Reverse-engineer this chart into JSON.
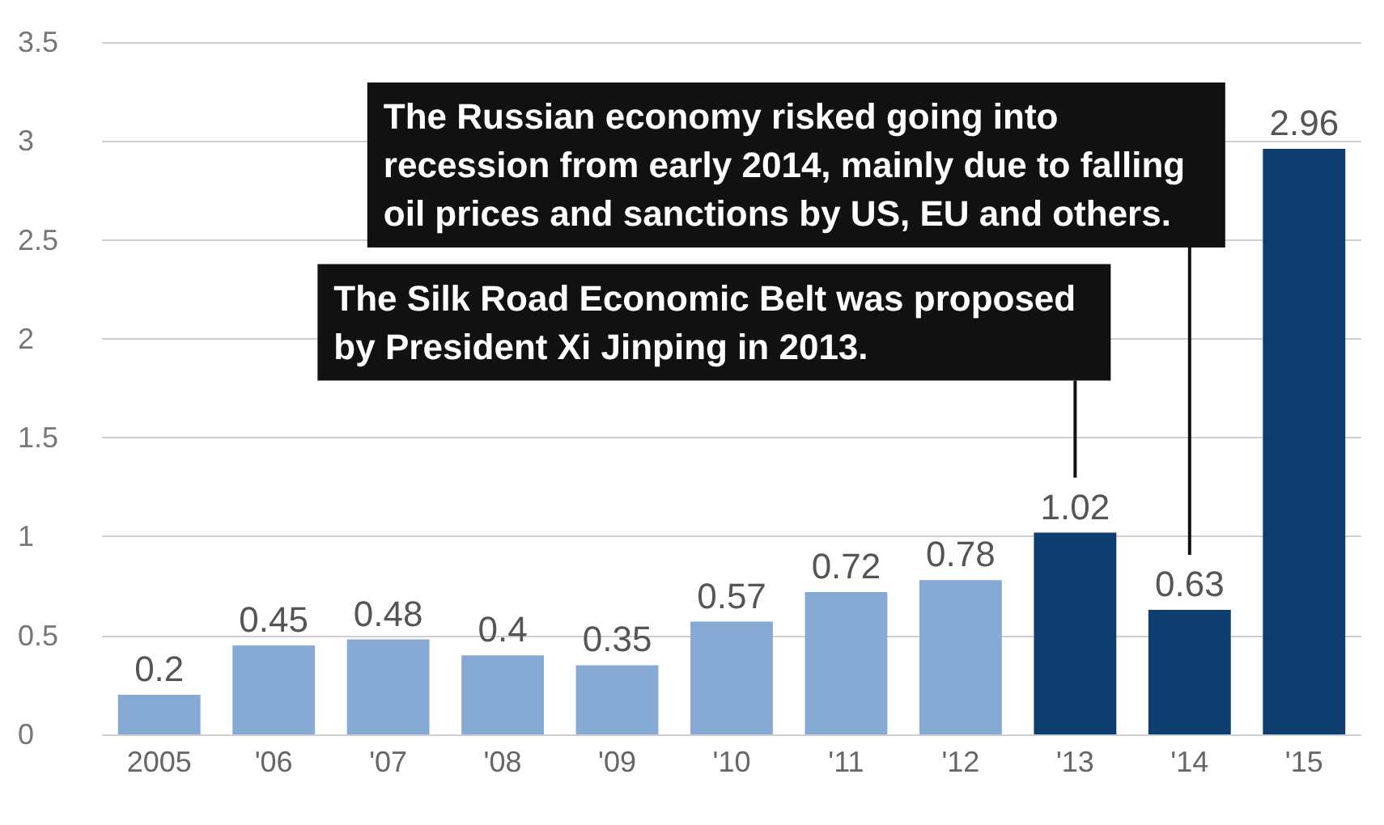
{
  "chart_data": {
    "type": "bar",
    "categories": [
      "2005",
      "'06",
      "'07",
      "'08",
      "'09",
      "'10",
      "'11",
      "'12",
      "'13",
      "'14",
      "'15"
    ],
    "values": [
      0.2,
      0.45,
      0.48,
      0.4,
      0.35,
      0.57,
      0.72,
      0.78,
      1.02,
      0.63,
      2.96
    ],
    "colors": [
      "#86aad4",
      "#86aad4",
      "#86aad4",
      "#86aad4",
      "#86aad4",
      "#86aad4",
      "#86aad4",
      "#86aad4",
      "#0e3d70",
      "#0e3d70",
      "#0e3d70"
    ],
    "ylim": [
      0,
      3.5
    ],
    "yticks": [
      0,
      0.5,
      1,
      1.5,
      2,
      2.5,
      3,
      3.5
    ],
    "grid": "y",
    "data_labels": true,
    "annotations": [
      "The Silk Road Economic Belt was proposed by President Xi Jinping in 2013.",
      "The Russian economy risked going into recession from early 2014, mainly due to falling oil prices and sanctions by US, EU and others."
    ]
  }
}
